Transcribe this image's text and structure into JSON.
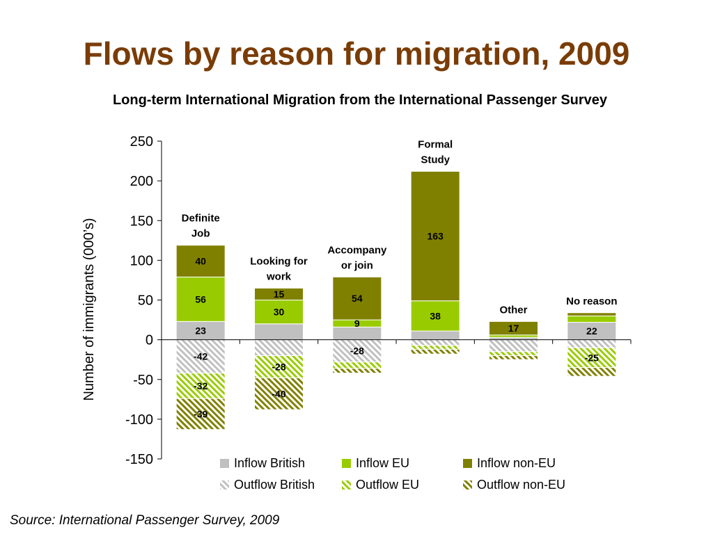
{
  "slide": {
    "title": "Flows by reason for migration, 2009",
    "source": "Source: International Passenger Survey, 2009"
  },
  "chart_data": {
    "type": "bar",
    "stacked": true,
    "title": "Long-term International Migration from the International Passenger Survey",
    "ylabel": "Number of immigrants (000’s)",
    "xlabel": "",
    "ylim": [
      -150,
      250
    ],
    "yticks": [
      250,
      200,
      150,
      100,
      50,
      0,
      -50,
      -100,
      -150
    ],
    "grid": false,
    "legend_position": "bottom",
    "categories": [
      "Definite Job",
      "Looking for work",
      "Accompany or join",
      "Formal Study",
      "Other",
      "No reason"
    ],
    "category_labels": [
      [
        "Definite",
        "Job"
      ],
      [
        "Looking for",
        "work"
      ],
      [
        "Accompany",
        "or join"
      ],
      [
        "Formal",
        "Study"
      ],
      [
        "Other"
      ],
      [
        "No reason"
      ]
    ],
    "series": [
      {
        "name": "Inflow British",
        "color": "#c0c0c0",
        "pattern": "solid",
        "values": [
          23,
          20,
          16,
          11,
          3,
          22
        ],
        "labels": [
          "23",
          "",
          "",
          "",
          "",
          "22"
        ]
      },
      {
        "name": "Inflow EU",
        "color": "#99cc00",
        "pattern": "solid",
        "values": [
          56,
          30,
          9,
          38,
          3,
          8
        ],
        "labels": [
          "56",
          "30",
          "9",
          "38",
          "",
          ""
        ]
      },
      {
        "name": "Inflow non-EU",
        "color": "#808000",
        "pattern": "solid",
        "values": [
          40,
          15,
          54,
          163,
          17,
          4
        ],
        "labels": [
          "40",
          "15",
          "54",
          "163",
          "17",
          ""
        ]
      },
      {
        "name": "Outflow British",
        "color": "#c0c0c0",
        "pattern": "hatch",
        "values": [
          -42,
          -20,
          -28,
          -7,
          -15,
          -10
        ],
        "labels": [
          "-42",
          "",
          "-28",
          "",
          "",
          ""
        ]
      },
      {
        "name": "Outflow EU",
        "color": "#99cc00",
        "pattern": "hatch",
        "values": [
          -32,
          -28,
          -8,
          -5,
          -5,
          -25
        ],
        "labels": [
          "-32",
          "-28",
          "",
          "",
          "",
          "-25"
        ]
      },
      {
        "name": "Outflow non-EU",
        "color": "#808000",
        "pattern": "hatch",
        "values": [
          -39,
          -40,
          -6,
          -6,
          -5,
          -11
        ],
        "labels": [
          "-39",
          "-40",
          "",
          "",
          "",
          ""
        ]
      }
    ]
  }
}
